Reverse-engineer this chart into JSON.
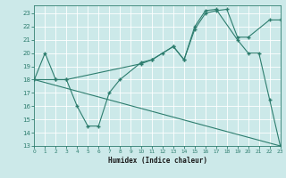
{
  "xlabel": "Humidex (Indice chaleur)",
  "bg_color": "#cce9e9",
  "grid_color": "#ffffff",
  "line_color": "#2d7d6e",
  "xlim": [
    0,
    23
  ],
  "ylim": [
    13,
    23.6
  ],
  "xticks": [
    0,
    1,
    2,
    3,
    4,
    5,
    6,
    7,
    8,
    9,
    10,
    11,
    12,
    13,
    14,
    15,
    16,
    17,
    18,
    19,
    20,
    21,
    22,
    23
  ],
  "yticks": [
    13,
    14,
    15,
    16,
    17,
    18,
    19,
    20,
    21,
    22,
    23
  ],
  "line1_x": [
    0,
    1,
    2,
    3,
    4,
    5,
    6,
    7,
    8,
    10,
    11,
    12,
    13,
    14,
    15,
    16,
    17,
    19,
    20,
    21,
    22,
    23
  ],
  "line1_y": [
    18,
    20,
    18,
    18,
    16,
    14.5,
    14.5,
    17,
    18,
    19.3,
    19.5,
    20,
    20.5,
    19.5,
    22,
    23.2,
    23.3,
    21,
    20,
    20,
    16.5,
    13
  ],
  "line2_x": [
    0,
    2,
    3,
    10,
    11,
    13,
    14,
    15,
    16,
    17,
    18,
    19,
    20,
    22,
    23
  ],
  "line2_y": [
    18,
    18,
    18,
    19.2,
    19.5,
    20.5,
    19.5,
    21.8,
    23.0,
    23.2,
    23.3,
    21.2,
    21.2,
    22.5,
    22.5
  ],
  "line3_x": [
    0,
    23
  ],
  "line3_y": [
    18,
    13
  ]
}
